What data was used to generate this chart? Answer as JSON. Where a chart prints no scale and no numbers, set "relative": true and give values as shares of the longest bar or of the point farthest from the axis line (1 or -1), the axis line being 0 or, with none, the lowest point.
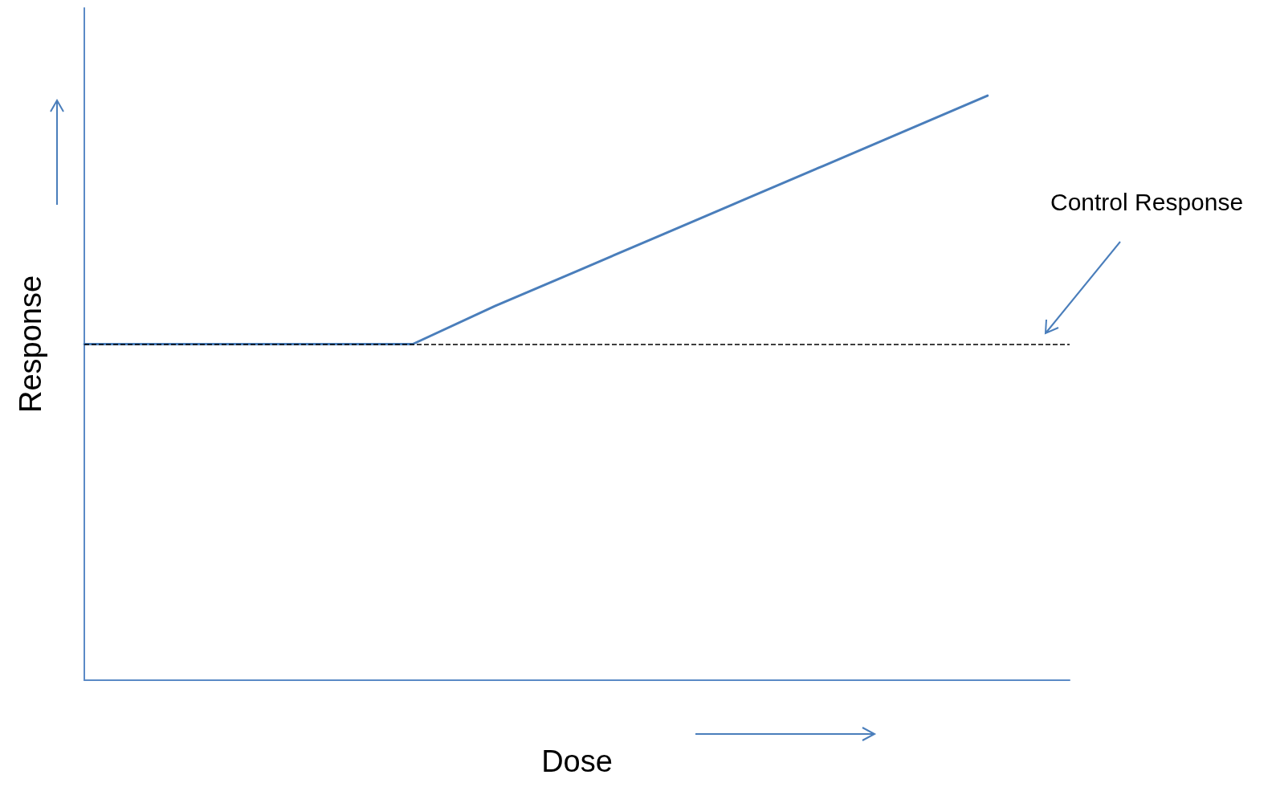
{
  "chart_data": {
    "type": "line",
    "xlabel": "Dose",
    "ylabel": "Response",
    "relative": true,
    "categories": [
      null,
      null,
      null,
      null,
      null,
      null,
      null,
      null,
      null,
      null,
      null,
      null,
      null
    ],
    "series": [
      {
        "color": "#4a7ebb",
        "values": [
          0.575,
          0.575,
          0.575,
          0.575,
          0.575,
          0.64,
          0.7,
          0.76,
          0.82,
          0.88,
          0.94,
          1,
          null
        ]
      }
    ],
    "ref_lines": [
      {
        "axis": "y",
        "value": 0.575,
        "label": "Control Response",
        "color": "#000000",
        "line_style": "dashed"
      }
    ],
    "grid": false,
    "marker": "none",
    "line_style": "solid"
  }
}
